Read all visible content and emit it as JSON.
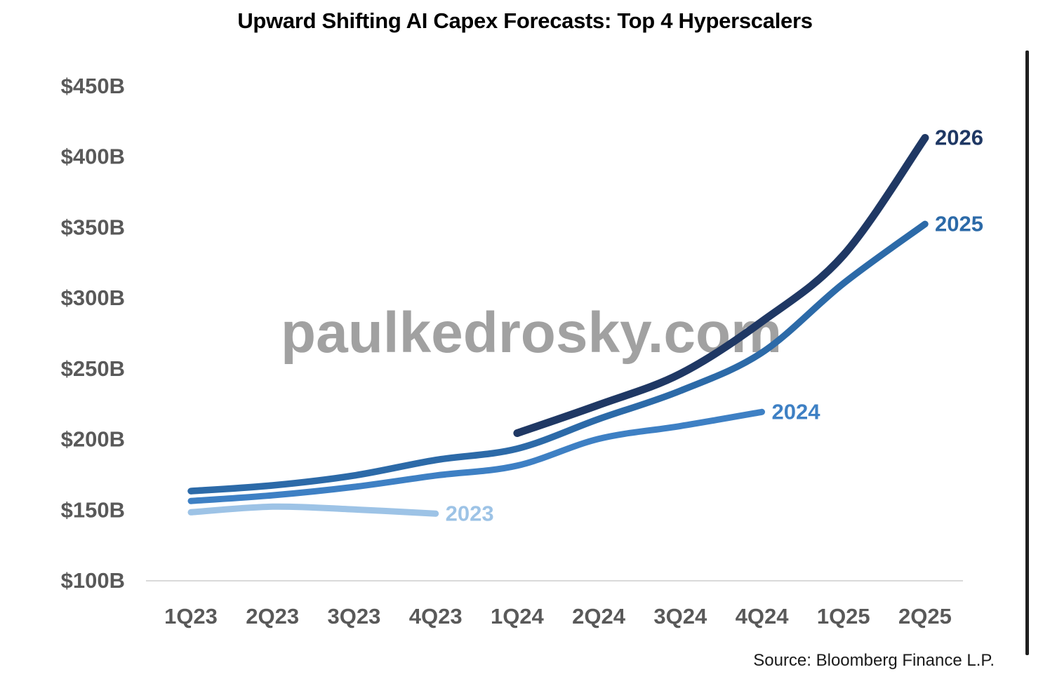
{
  "page": {
    "title": "Upward Shifting AI Capex Forecasts: Top 4 Hyperscalers",
    "source": "Source: Bloomberg Finance L.P.",
    "watermark": "paulkedrosky.com"
  },
  "colors": {
    "title_text": "#000000",
    "axis_label": "#595959",
    "baseline": "#d9d9d9",
    "watermark": "#9a9a9a",
    "source_text": "#1a1a1a",
    "right_border": "#1f1f1f",
    "series_2023": "#9dc3e6",
    "series_2024": "#3e80c4",
    "series_2025": "#2c6aa8",
    "series_2026": "#1f3864"
  },
  "chart_data": {
    "type": "line",
    "title": "Upward Shifting AI Capex Forecasts: Top 4 Hyperscalers",
    "unit": "USD billions",
    "categories": [
      "1Q23",
      "2Q23",
      "3Q23",
      "4Q23",
      "1Q24",
      "2Q24",
      "3Q24",
      "4Q24",
      "1Q25",
      "2Q25"
    ],
    "y_tick_labels": [
      "$450B",
      "$400B",
      "$350B",
      "$300B",
      "$250B",
      "$200B",
      "$150B",
      "$100B"
    ],
    "y_tick_values": [
      450,
      400,
      350,
      300,
      250,
      200,
      150,
      100
    ],
    "ylim": [
      100,
      450
    ],
    "grid": false,
    "legend_position": "inline end-of-line labels",
    "series": [
      {
        "name": "2023",
        "color": "#9dc3e6",
        "start_category": "1Q23",
        "start_index": 0,
        "values": [
          148,
          152,
          150,
          147
        ]
      },
      {
        "name": "2024",
        "color": "#3e80c4",
        "start_category": "1Q23",
        "start_index": 0,
        "values": [
          156,
          160,
          166,
          174,
          181,
          200,
          209,
          219
        ]
      },
      {
        "name": "2025",
        "color": "#2c6aa8",
        "start_category": "1Q23",
        "start_index": 0,
        "values": [
          163,
          167,
          174,
          185,
          193,
          214,
          234,
          261,
          310,
          352
        ]
      },
      {
        "name": "2026",
        "color": "#1f3864",
        "start_category": "1Q24",
        "start_index": 4,
        "values": [
          204,
          224,
          246,
          283,
          330,
          413
        ]
      }
    ],
    "source": "Source: Bloomberg Finance L.P.",
    "watermark": "paulkedrosky.com"
  }
}
